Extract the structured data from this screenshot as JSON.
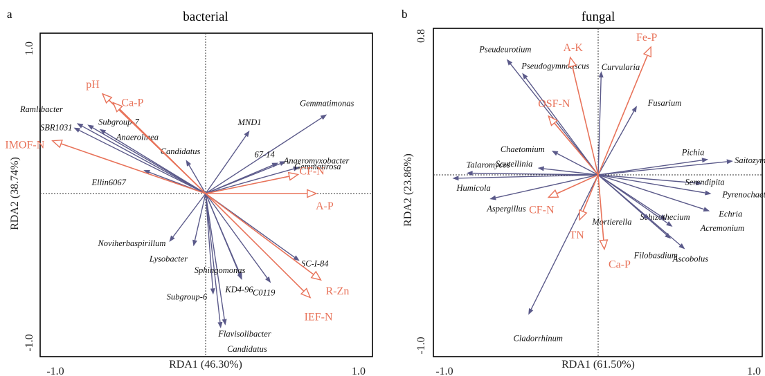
{
  "colors": {
    "species": "#5b5a8a",
    "environment": "#e8735a",
    "frame": "#000000"
  },
  "chart_data": [
    {
      "type": "scatter",
      "panel": "a",
      "title": "bacterial",
      "xlabel": "RDA1 (46.30%)",
      "ylabel": "RDA2 (38.74%)",
      "xlim": [
        -1.1,
        1.1
      ],
      "ylim": [
        -1.1,
        1.1
      ],
      "x_tick_labels": [
        {
          "value": -1.0,
          "label": "-1.0"
        },
        {
          "value": 1.0,
          "label": "1.0"
        }
      ],
      "y_tick_labels": [
        {
          "value": 1.0,
          "label": "1.0"
        },
        {
          "value": -1.0,
          "label": "-1.0"
        }
      ],
      "species": [
        {
          "name": "Ramlibacter",
          "x": -0.85,
          "y": 0.48
        },
        {
          "name": "Subgroup-7",
          "x": -0.78,
          "y": 0.47
        },
        {
          "name": "SBR1031",
          "x": -0.87,
          "y": 0.45
        },
        {
          "name": "Anaerolinea",
          "x": -0.7,
          "y": 0.44
        },
        {
          "name": "Ellin6067",
          "x": -0.41,
          "y": 0.16
        },
        {
          "name": "Candidatus",
          "x": -0.13,
          "y": 0.23
        },
        {
          "name": "MND1",
          "x": 0.29,
          "y": 0.43
        },
        {
          "name": "Gemmatimonas",
          "x": 0.8,
          "y": 0.54
        },
        {
          "name": "67-14",
          "x": 0.48,
          "y": 0.21
        },
        {
          "name": "Anaeromyxobacter",
          "x": 0.53,
          "y": 0.22
        },
        {
          "name": "Gemmatirosa",
          "x": 0.62,
          "y": 0.18
        },
        {
          "name": "Noviherbaspirillum",
          "x": -0.24,
          "y": -0.33
        },
        {
          "name": "Lysobacter",
          "x": -0.08,
          "y": -0.36
        },
        {
          "name": "Subgroup-6",
          "x": 0.05,
          "y": -0.69
        },
        {
          "name": "Candidatus",
          "x": 0.1,
          "y": -0.92
        },
        {
          "name": "Flavisolibacter",
          "x": 0.13,
          "y": -0.9
        },
        {
          "name": "KD4-96",
          "x": 0.24,
          "y": -0.59
        },
        {
          "name": "Sphingomonas",
          "x": 0.24,
          "y": -0.58
        },
        {
          "name": "C0119",
          "x": 0.43,
          "y": -0.61
        },
        {
          "name": "SC-I-84",
          "x": 0.62,
          "y": -0.46
        }
      ],
      "environment": [
        {
          "name": "pH",
          "x": -0.68,
          "y": 0.68
        },
        {
          "name": "Ca-P",
          "x": -0.61,
          "y": 0.62
        },
        {
          "name": "IMOF-N",
          "x": -1.01,
          "y": 0.36
        },
        {
          "name": "CF-N",
          "x": 0.61,
          "y": 0.13
        },
        {
          "name": "A-P",
          "x": 0.73,
          "y": 0.0
        },
        {
          "name": "R-Zn",
          "x": 0.76,
          "y": -0.59
        },
        {
          "name": "IEF-N",
          "x": 0.69,
          "y": -0.71
        }
      ]
    },
    {
      "type": "scatter",
      "panel": "b",
      "title": "fungal",
      "xlabel": "RDA1 (61.50%)",
      "ylabel": "RDA2 (23.86%)",
      "xlim": [
        -1.05,
        1.05
      ],
      "ylim": [
        -1.05,
        0.85
      ],
      "x_tick_labels": [
        {
          "value": -1.0,
          "label": "-1.0"
        },
        {
          "value": 1.0,
          "label": "1.0"
        }
      ],
      "y_tick_labels": [
        {
          "value": 0.8,
          "label": "0.8"
        },
        {
          "value": -1.0,
          "label": "-1.0"
        }
      ],
      "species": [
        {
          "name": "Pseudeurotium",
          "x": -0.59,
          "y": 0.67
        },
        {
          "name": "Pseudogymnoascus",
          "x": -0.49,
          "y": 0.59
        },
        {
          "name": "Curvularia",
          "x": 0.02,
          "y": 0.6
        },
        {
          "name": "Fusarium",
          "x": 0.25,
          "y": 0.4
        },
        {
          "name": "Chaetomium",
          "x": -0.3,
          "y": 0.14
        },
        {
          "name": "Scutellinia",
          "x": -0.39,
          "y": 0.04
        },
        {
          "name": "Talaromyces",
          "x": -0.85,
          "y": 0.01
        },
        {
          "name": "Humicola",
          "x": -0.94,
          "y": -0.02
        },
        {
          "name": "Aspergillus",
          "x": -0.7,
          "y": -0.14
        },
        {
          "name": "Pichia",
          "x": 0.71,
          "y": 0.09
        },
        {
          "name": "Saitozyma",
          "x": 0.87,
          "y": 0.08
        },
        {
          "name": "Serendipita",
          "x": 0.67,
          "y": -0.05
        },
        {
          "name": "Pyrenochaetopsis",
          "x": 0.73,
          "y": -0.11
        },
        {
          "name": "Echria",
          "x": 0.72,
          "y": -0.21
        },
        {
          "name": "Schizothecium",
          "x": 0.44,
          "y": -0.26
        },
        {
          "name": "Acremonium",
          "x": 0.48,
          "y": -0.3
        },
        {
          "name": "Mortierella",
          "x": 0.33,
          "y": -0.26
        },
        {
          "name": "Filobasdium",
          "x": 0.47,
          "y": -0.37
        },
        {
          "name": "Ascobolus",
          "x": 0.56,
          "y": -0.43
        },
        {
          "name": "Cladorrhinum",
          "x": -0.45,
          "y": -0.81
        }
      ],
      "environment": [
        {
          "name": "A-K",
          "x": -0.18,
          "y": 0.68
        },
        {
          "name": "Fe-P",
          "x": 0.34,
          "y": 0.74
        },
        {
          "name": "OSF-N",
          "x": -0.32,
          "y": 0.34
        },
        {
          "name": "CF-N",
          "x": -0.32,
          "y": -0.13
        },
        {
          "name": "TN",
          "x": -0.12,
          "y": -0.26
        },
        {
          "name": "Ca-P",
          "x": 0.04,
          "y": -0.43
        }
      ]
    }
  ]
}
